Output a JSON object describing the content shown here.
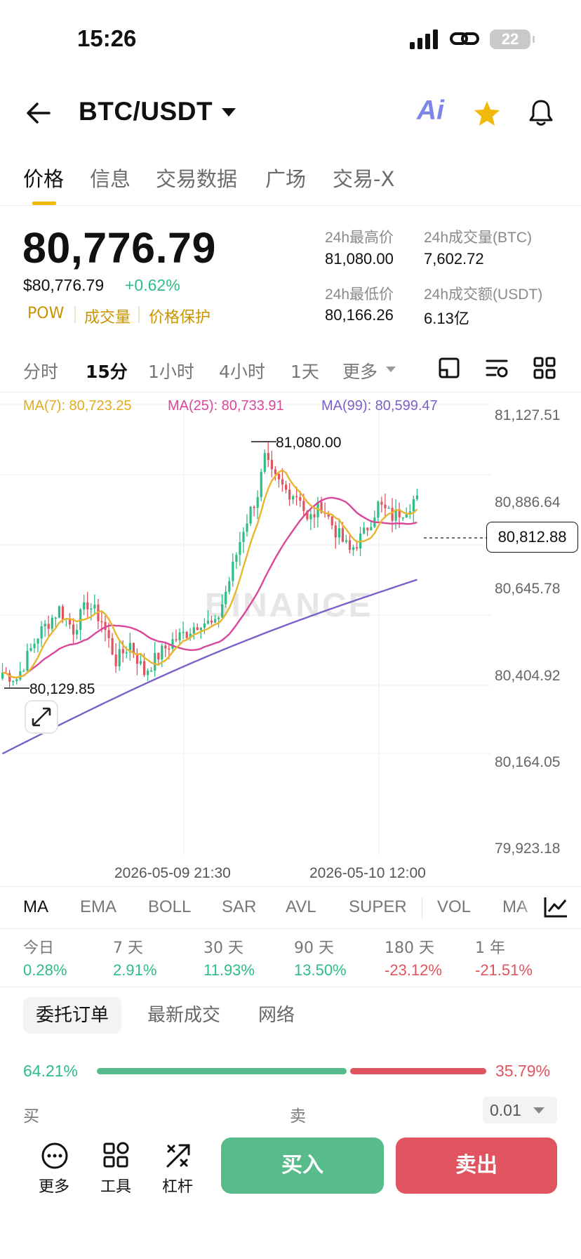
{
  "status": {
    "time": "15:26",
    "battery": "22"
  },
  "header": {
    "pair": "BTC/USDT",
    "ai_label": "Ai"
  },
  "tabs": [
    "价格",
    "信息",
    "交易数据",
    "广场",
    "交易-X"
  ],
  "price": {
    "last": "80,776.79",
    "usd": "$80,776.79",
    "change": "+0.62%",
    "tags": [
      "POW",
      "成交量",
      "价格保护"
    ]
  },
  "stats": {
    "high_label": "24h最高价",
    "high": "81,080.00",
    "vol_btc_label": "24h成交量(BTC)",
    "vol_btc": "7,602.72",
    "low_label": "24h最低价",
    "low": "80,166.26",
    "vol_usdt_label": "24h成交额(USDT)",
    "vol_usdt": "6.13亿"
  },
  "intervals": [
    "分时",
    "15分",
    "1小时",
    "4小时",
    "1天",
    "更多"
  ],
  "chart": {
    "ma7": "MA(7): 80,723.25",
    "ma25": "MA(25): 80,733.91",
    "ma99": "MA(99): 80,599.47",
    "price_labels": [
      "81,127.51",
      "80,886.64",
      "80,645.78",
      "80,404.92",
      "80,164.05",
      "79,923.18"
    ],
    "current_price": "80,812.88",
    "high_marker": "81,080.00",
    "low_marker": "80,129.85",
    "date_labels": [
      "2026-05-09 21:30",
      "2026-05-10 12:00"
    ],
    "watermark": "BINANCE",
    "colors": {
      "up": "#2ebd85",
      "down": "#e0545f",
      "ma7": "#e8b52e",
      "ma25": "#d9479b",
      "ma99": "#7b60c8"
    }
  },
  "indicators": [
    "MA",
    "EMA",
    "BOLL",
    "SAR",
    "AVL",
    "SUPER",
    "VOL",
    "MA"
  ],
  "performance": [
    {
      "label": "今日",
      "value": "0.28%",
      "dir": "up"
    },
    {
      "label": "7 天",
      "value": "2.91%",
      "dir": "up"
    },
    {
      "label": "30 天",
      "value": "11.93%",
      "dir": "up"
    },
    {
      "label": "90 天",
      "value": "13.50%",
      "dir": "up"
    },
    {
      "label": "180 天",
      "value": "-23.12%",
      "dir": "down"
    },
    {
      "label": "1 年",
      "value": "-21.51%",
      "dir": "down"
    }
  ],
  "orderbook": {
    "tabs": [
      "委托订单",
      "最新成交",
      "网络"
    ],
    "buy_ratio": "64.21%",
    "sell_ratio": "35.79%",
    "buy_share": 0.6421,
    "buy_label": "买",
    "sell_label": "卖",
    "depth": "0.01"
  },
  "bottom": {
    "tools": [
      "更多",
      "工具",
      "杠杆"
    ],
    "buy": "买入",
    "sell": "卖出"
  }
}
